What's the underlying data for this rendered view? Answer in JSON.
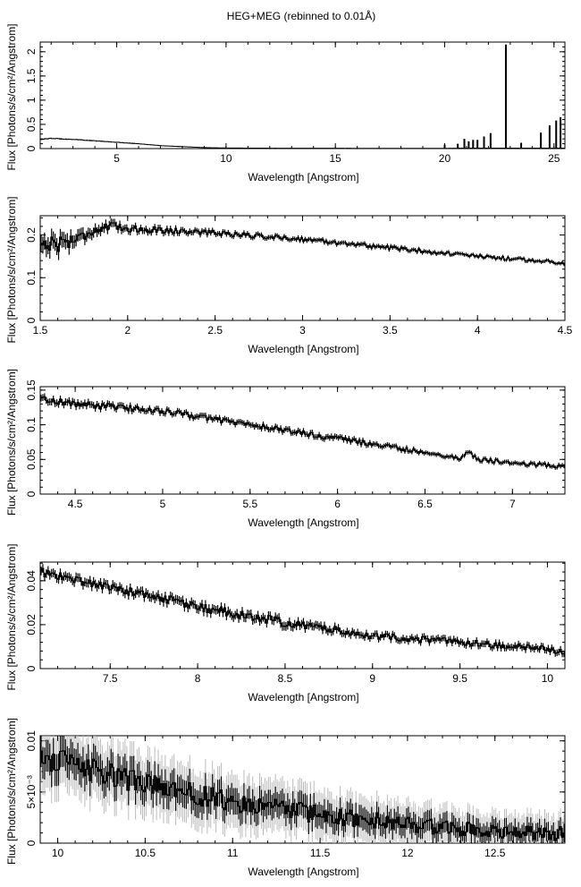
{
  "figure": {
    "title": "HEG+MEG (rebinned to 0.01Å)"
  },
  "chart_data": [
    {
      "type": "line",
      "title": "HEG+MEG (rebinned to 0.01Å)",
      "xlabel": "Wavelength [Angstrom]",
      "ylabel": "Flux [Photons/s/cm²/Angstrom]",
      "xlim": [
        1.5,
        25.5
      ],
      "ylim": [
        0,
        2.2
      ],
      "x_ticks": [
        5,
        10,
        15,
        20,
        25
      ],
      "x_tick_labels": [
        "5",
        "10",
        "15",
        "20",
        "25"
      ],
      "y_ticks": [
        0,
        0.5,
        1,
        1.5,
        2
      ],
      "y_tick_labels": [
        "0",
        "0.5",
        "1",
        "1.5",
        "2"
      ],
      "series": [
        {
          "x": [
            1.5,
            2.0,
            3.0,
            4.0,
            5.0,
            6.0,
            7.0,
            8.0,
            9.0,
            10.0,
            12.0,
            15.0,
            18.0,
            20.0,
            21.0,
            22.0,
            22.7,
            23.5,
            25.5
          ],
          "y": [
            0.19,
            0.21,
            0.19,
            0.16,
            0.13,
            0.1,
            0.06,
            0.04,
            0.02,
            0.012,
            0.008,
            0.006,
            0.005,
            0.005,
            0.01,
            0.01,
            0.01,
            0.01,
            0.01
          ]
        }
      ],
      "emission_lines": [
        {
          "x": 20.0,
          "y": 0.08
        },
        {
          "x": 20.6,
          "y": 0.1
        },
        {
          "x": 20.9,
          "y": 0.2
        },
        {
          "x": 21.1,
          "y": 0.15
        },
        {
          "x": 21.3,
          "y": 0.18
        },
        {
          "x": 21.5,
          "y": 0.18
        },
        {
          "x": 21.8,
          "y": 0.25
        },
        {
          "x": 22.1,
          "y": 0.32
        },
        {
          "x": 22.8,
          "y": 2.15
        },
        {
          "x": 23.5,
          "y": 0.12
        },
        {
          "x": 24.4,
          "y": 0.33
        },
        {
          "x": 24.8,
          "y": 0.48
        },
        {
          "x": 25.1,
          "y": 0.58
        },
        {
          "x": 25.3,
          "y": 0.65
        }
      ]
    },
    {
      "type": "line",
      "xlabel": "Wavelength [Angstrom]",
      "ylabel": "Flux [Photons/s/cm²/Angstrom]",
      "xlim": [
        1.5,
        4.5
      ],
      "ylim": [
        0,
        0.245
      ],
      "x_ticks": [
        1.5,
        2,
        2.5,
        3,
        3.5,
        4,
        4.5
      ],
      "x_tick_labels": [
        "1.5",
        "2",
        "2.5",
        "3",
        "3.5",
        "4",
        "4.5"
      ],
      "y_ticks": [
        0,
        0.1,
        0.2
      ],
      "y_tick_labels": [
        "0",
        "0.1",
        "0.2"
      ],
      "series": [
        {
          "x": [
            1.5,
            1.6,
            1.7,
            1.8,
            1.9,
            2.0,
            2.5,
            3.0,
            3.5,
            4.0,
            4.5
          ],
          "y": [
            0.18,
            0.18,
            0.19,
            0.21,
            0.22,
            0.215,
            0.205,
            0.19,
            0.17,
            0.15,
            0.135
          ],
          "noise": [
            0.02,
            0.02,
            0.015,
            0.012,
            0.01,
            0.008,
            0.006,
            0.005,
            0.005,
            0.004,
            0.004
          ]
        }
      ]
    },
    {
      "type": "line",
      "xlabel": "Wavelength [Angstrom]",
      "ylabel": "Flux [Photons/s/cm²/Angstrom]",
      "xlim": [
        4.3,
        7.3
      ],
      "ylim": [
        0,
        0.155
      ],
      "x_ticks": [
        4.5,
        5,
        5.5,
        6,
        6.5,
        7
      ],
      "x_tick_labels": [
        "4.5",
        "5",
        "5.5",
        "6",
        "6.5",
        "7"
      ],
      "y_ticks": [
        0,
        0.05,
        0.1,
        0.15
      ],
      "y_tick_labels": [
        "0",
        "0.05",
        "0.1",
        "0.15"
      ],
      "series": [
        {
          "x": [
            4.3,
            4.5,
            5.0,
            5.5,
            6.0,
            6.5,
            6.7,
            6.75,
            6.8,
            7.0,
            7.3
          ],
          "y": [
            0.138,
            0.13,
            0.12,
            0.1,
            0.08,
            0.06,
            0.052,
            0.06,
            0.05,
            0.045,
            0.04
          ],
          "noise": [
            0.005,
            0.005,
            0.004,
            0.004,
            0.004,
            0.003,
            0.003,
            0.003,
            0.003,
            0.003,
            0.003
          ]
        }
      ]
    },
    {
      "type": "line",
      "xlabel": "Wavelength [Angstrom]",
      "ylabel": "Flux [Photons/s/cm²/Angstrom]",
      "xlim": [
        7.1,
        10.1
      ],
      "ylim": [
        0,
        0.0485
      ],
      "x_ticks": [
        7.5,
        8,
        8.5,
        9,
        9.5,
        10
      ],
      "x_tick_labels": [
        "7.5",
        "8",
        "8.5",
        "9",
        "9.5",
        "10"
      ],
      "y_ticks": [
        0,
        0.02,
        0.04
      ],
      "y_tick_labels": [
        "0",
        "0.02",
        "0.04"
      ],
      "series": [
        {
          "x": [
            7.1,
            7.5,
            7.85,
            8.0,
            8.5,
            9.0,
            9.5,
            10.1
          ],
          "y": [
            0.044,
            0.037,
            0.031,
            0.028,
            0.021,
            0.015,
            0.012,
            0.008
          ],
          "noise": [
            0.002,
            0.002,
            0.002,
            0.002,
            0.002,
            0.0015,
            0.0015,
            0.0015
          ]
        }
      ]
    },
    {
      "type": "line",
      "xlabel": "Wavelength [Angstrom]",
      "ylabel": "Flux [Photons/s/cm²/Angstrom]",
      "xlim": [
        9.9,
        12.9
      ],
      "ylim": [
        0,
        0.0105
      ],
      "x_ticks": [
        10,
        10.5,
        11,
        11.5,
        12,
        12.5
      ],
      "x_tick_labels": [
        "10",
        "10.5",
        "11",
        "11.5",
        "12",
        "12.5"
      ],
      "y_ticks": [
        0,
        0.005,
        0.01
      ],
      "y_tick_labels": [
        "0",
        "5×10⁻³",
        "0.01"
      ],
      "series": [
        {
          "x": [
            9.9,
            10.0,
            10.5,
            11.0,
            11.5,
            12.0,
            12.5,
            12.9
          ],
          "y": [
            0.0085,
            0.008,
            0.0058,
            0.004,
            0.0028,
            0.0018,
            0.0012,
            0.0009
          ],
          "noise": [
            0.0012,
            0.0012,
            0.0011,
            0.001,
            0.0009,
            0.0008,
            0.0007,
            0.0007
          ]
        }
      ]
    }
  ]
}
